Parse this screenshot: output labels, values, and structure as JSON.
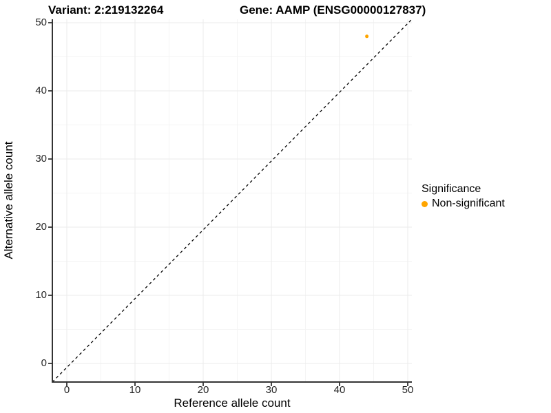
{
  "title": {
    "variant": "Variant: 2:219132264",
    "gene": "Gene: AAMP (ENSG00000127837)"
  },
  "legend": {
    "title": "Significance",
    "items": [
      {
        "label": "Non-significant",
        "color": "#FFA500"
      }
    ]
  },
  "chart_data": {
    "type": "scatter",
    "title": "Variant: 2:219132264    Gene: AAMP (ENSG00000127837)",
    "xlabel": "Reference allele count",
    "ylabel": "Alternative allele count",
    "xlim": [
      0,
      50
    ],
    "ylim": [
      0,
      50
    ],
    "xticks": [
      0,
      10,
      20,
      30,
      40,
      50
    ],
    "yticks": [
      0,
      10,
      20,
      30,
      40,
      50
    ],
    "minor_tick_step": 5,
    "grid": true,
    "legend_position": "right",
    "series": [
      {
        "name": "Non-significant",
        "color": "#FFA500",
        "points": [
          {
            "x": 44,
            "y": 48
          }
        ]
      }
    ],
    "reference_line": {
      "type": "identity",
      "style": "dashed",
      "color": "#000000"
    }
  },
  "colors": {
    "point": "#FFA500",
    "grid_major": "#EBEBEB",
    "grid_minor": "#F4F4F4",
    "axis_line": "#333333",
    "tick_text": "#262626",
    "background": "#FFFFFF"
  }
}
